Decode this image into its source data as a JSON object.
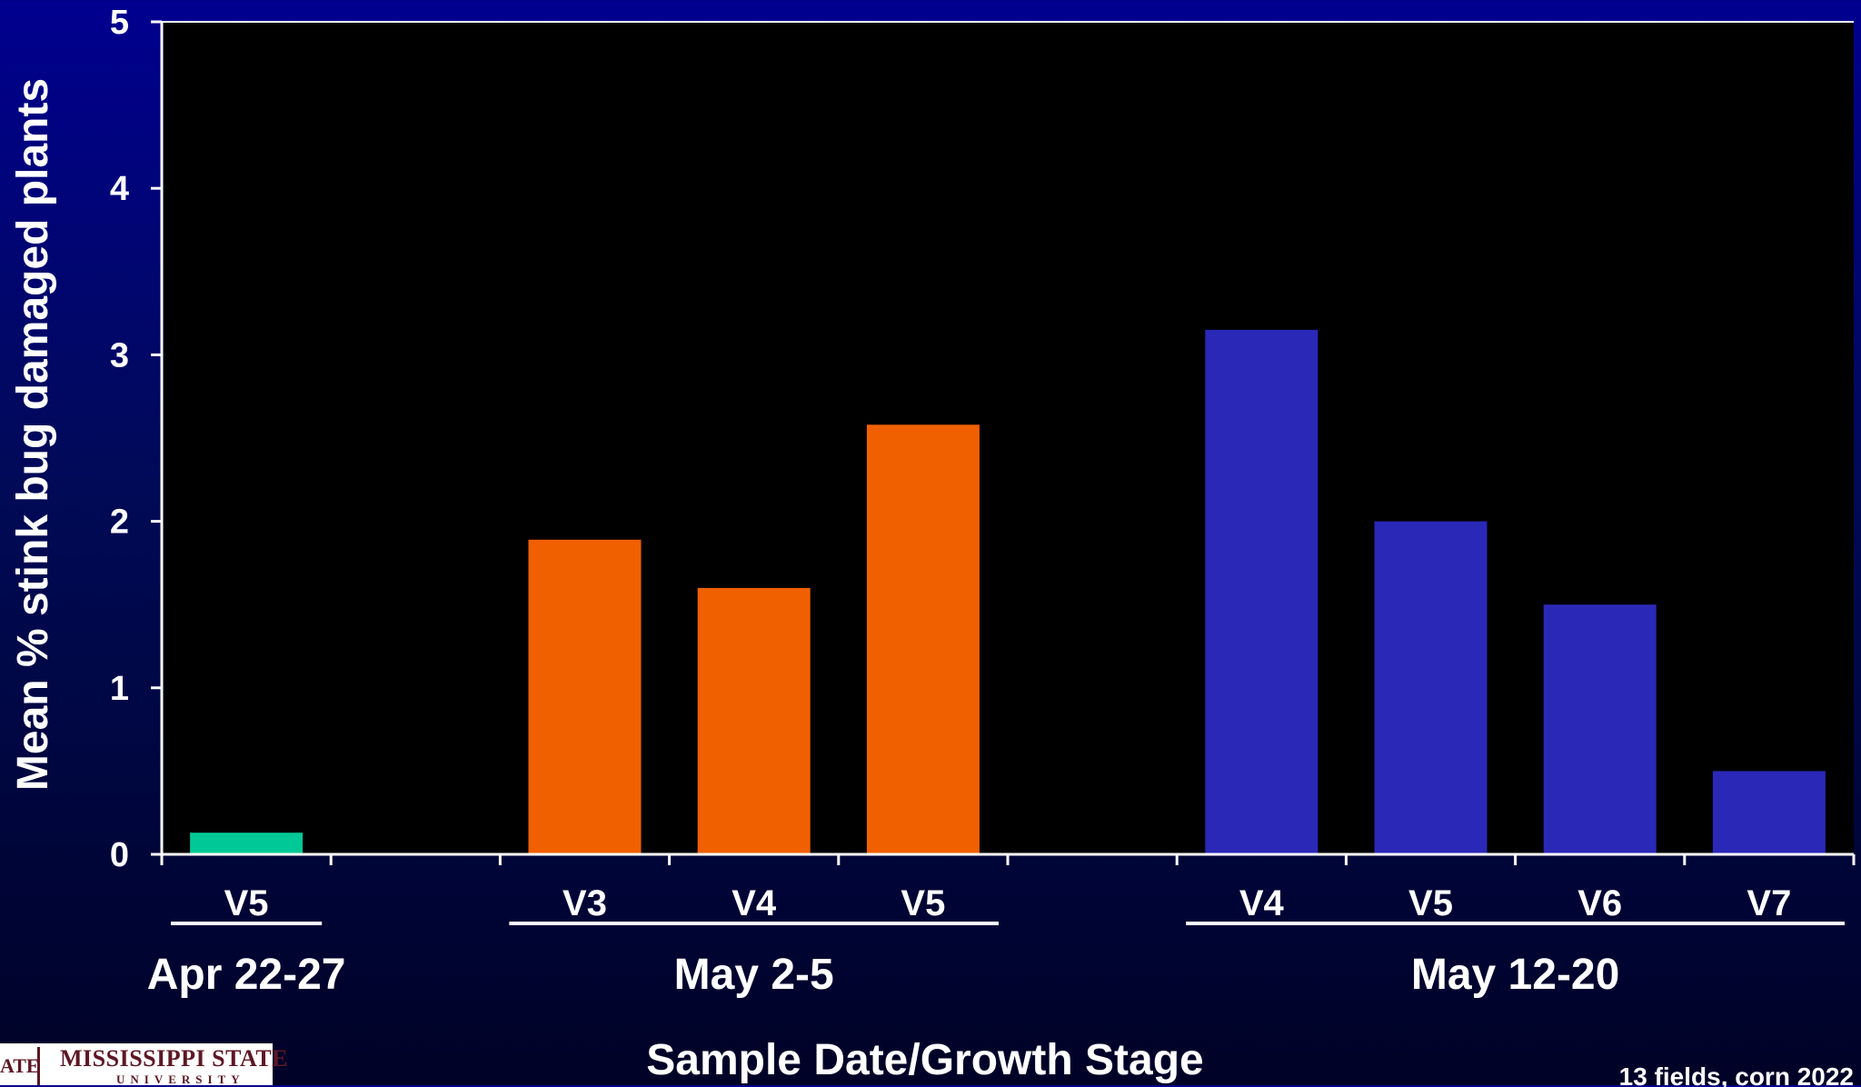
{
  "chart_data": {
    "type": "bar",
    "title": "",
    "xlabel": "Sample Date/Growth Stage",
    "ylabel": "Mean % stink bug damaged plants",
    "ylim": [
      0,
      5
    ],
    "yticks": [
      0,
      1,
      2,
      3,
      4,
      5
    ],
    "grid": false,
    "groups": [
      {
        "name": "Apr 22-27",
        "color": "#00c896",
        "categories": [
          "V5"
        ],
        "values": [
          0.13
        ]
      },
      {
        "name": "May 2-5",
        "color": "#f06000",
        "categories": [
          "V3",
          "V4",
          "V5"
        ],
        "values": [
          1.89,
          1.6,
          2.58
        ]
      },
      {
        "name": "May 12-20",
        "color": "#2a28b6",
        "categories": [
          "V4",
          "V5",
          "V6",
          "V7"
        ],
        "values": [
          3.15,
          2.0,
          1.5,
          0.5
        ]
      }
    ]
  },
  "footnote": "13 fields, corn 2022",
  "logo": {
    "line1": "MISSISSIPPI STATE",
    "line2": "UNIVERSITY",
    "mark": "ATE"
  },
  "colors": {
    "plot_background": "#000000",
    "axis": "#ffffff",
    "text": "#ffffff"
  }
}
